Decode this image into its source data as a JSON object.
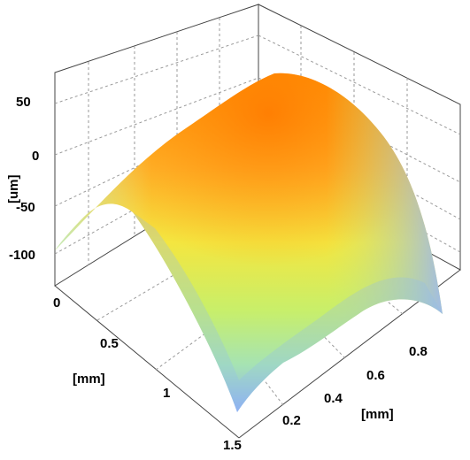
{
  "chart_data": {
    "type": "surface",
    "z_label": "[um]",
    "x_label": "[mm]",
    "y_label": "[mm]",
    "z_ticks": [
      "50",
      "0",
      "-50",
      "-100"
    ],
    "x_ticks": [
      "0",
      "0.5",
      "1",
      "1.5"
    ],
    "y_ticks": [
      "0.2",
      "0.4",
      "0.6",
      "0.8"
    ],
    "x_range": [
      0,
      1.5
    ],
    "y_range": [
      0.1,
      0.9
    ],
    "z_range": [
      -140,
      65
    ],
    "grid": true,
    "colormap": "jet",
    "surface": {
      "description_values": {
        "corner_x0_y0.1": -100,
        "corner_x0_y0.9": -60,
        "corner_x1.5_y0.1": -140,
        "corner_x1.5_y0.9": -140,
        "peak": 65
      }
    }
  }
}
